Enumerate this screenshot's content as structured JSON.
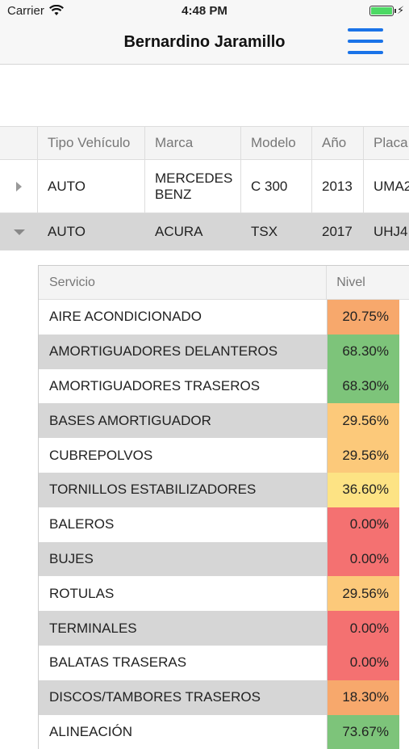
{
  "status_bar": {
    "carrier": "Carrier",
    "time": "4:48 PM"
  },
  "nav": {
    "title": "Bernardino Jaramillo"
  },
  "vehicles": {
    "columns": [
      "Tipo Vehículo",
      "Marca",
      "Modelo",
      "Año",
      "Placa"
    ],
    "rows": [
      {
        "tipo": "AUTO",
        "marca": "MERCEDES BENZ",
        "modelo": "C 300",
        "anio": "2013",
        "placa": "UMA2",
        "expanded": false
      },
      {
        "tipo": "AUTO",
        "marca": "ACURA",
        "modelo": "TSX",
        "anio": "2017",
        "placa": "UHJ4",
        "expanded": true
      }
    ]
  },
  "services": {
    "columns": [
      "Servicio",
      "Nivel"
    ],
    "rows": [
      {
        "name": "AIRE ACONDICIONADO",
        "level": "20.75%",
        "color": "#f7a86c"
      },
      {
        "name": "AMORTIGUADORES DELANTEROS",
        "level": "68.30%",
        "color": "#7dc47a"
      },
      {
        "name": "AMORTIGUADORES TRASEROS",
        "level": "68.30%",
        "color": "#7dc47a"
      },
      {
        "name": "BASES AMORTIGUADOR",
        "level": "29.56%",
        "color": "#fcc97a"
      },
      {
        "name": "CUBREPOLVOS",
        "level": "29.56%",
        "color": "#fcc97a"
      },
      {
        "name": "TORNILLOS ESTABILIZADORES",
        "level": "36.60%",
        "color": "#fde384"
      },
      {
        "name": "BALEROS",
        "level": "0.00%",
        "color": "#f47171"
      },
      {
        "name": "BUJES",
        "level": "0.00%",
        "color": "#f47171"
      },
      {
        "name": "ROTULAS",
        "level": "29.56%",
        "color": "#fcc97a"
      },
      {
        "name": "TERMINALES",
        "level": "0.00%",
        "color": "#f47171"
      },
      {
        "name": "BALATAS TRASERAS",
        "level": "0.00%",
        "color": "#f47171"
      },
      {
        "name": "DISCOS/TAMBORES TRASEROS",
        "level": "18.30%",
        "color": "#f7a86c"
      },
      {
        "name": "ALINEACIÓN",
        "level": "73.67%",
        "color": "#7dc47a"
      }
    ]
  }
}
